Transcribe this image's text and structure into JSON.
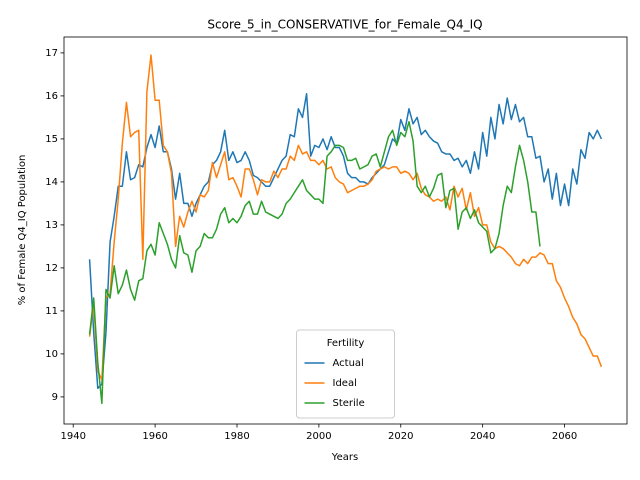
{
  "chart_data": {
    "type": "line",
    "title": "Score_5_in_CONSERVATIVE_for_Female_Q4_IQ",
    "xlabel": "Years",
    "ylabel": "% of Female Q4_IQ Population",
    "legend_title": "Fertility",
    "legend": "lower center",
    "grid": false,
    "xlim": [
      1937.75,
      2075.25
    ],
    "ylim": [
      8.37,
      17.37
    ],
    "xticks": [
      1940,
      1960,
      1980,
      2000,
      2020,
      2040,
      2060
    ],
    "yticks": [
      9,
      10,
      11,
      12,
      13,
      14,
      15,
      16,
      17
    ],
    "x": [
      1944,
      1945,
      1946,
      1947,
      1948,
      1949,
      1950,
      1951,
      1952,
      1953,
      1954,
      1955,
      1956,
      1957,
      1958,
      1959,
      1960,
      1961,
      1962,
      1963,
      1964,
      1965,
      1966,
      1967,
      1968,
      1969,
      1970,
      1971,
      1972,
      1973,
      1974,
      1975,
      1976,
      1977,
      1978,
      1979,
      1980,
      1981,
      1982,
      1983,
      1984,
      1985,
      1986,
      1987,
      1988,
      1989,
      1990,
      1991,
      1992,
      1993,
      1994,
      1995,
      1996,
      1997,
      1998,
      1999,
      2000,
      2001,
      2002,
      2003,
      2004,
      2005,
      2006,
      2007,
      2008,
      2009,
      2010,
      2011,
      2012,
      2013,
      2014,
      2015,
      2016,
      2017,
      2018,
      2019,
      2020,
      2021,
      2022,
      2023,
      2024,
      2025,
      2026,
      2027,
      2028,
      2029,
      2030,
      2031,
      2032,
      2033,
      2034,
      2035,
      2036,
      2037,
      2038,
      2039,
      2040,
      2041,
      2042,
      2043,
      2044,
      2045,
      2046,
      2047,
      2048,
      2049,
      2050,
      2051,
      2052,
      2053,
      2054,
      2055,
      2056,
      2057,
      2058,
      2059,
      2060,
      2061,
      2062,
      2063,
      2064,
      2065,
      2066,
      2067,
      2068,
      2069
    ],
    "series": [
      {
        "name": "Actual",
        "color": "#1f77b4",
        "values": [
          12.2,
          10.5,
          9.2,
          9.3,
          10.5,
          12.6,
          13.2,
          13.9,
          13.9,
          14.7,
          14.05,
          14.1,
          14.4,
          14.35,
          14.8,
          15.1,
          14.8,
          15.3,
          14.7,
          14.7,
          14.3,
          13.6,
          14.2,
          13.5,
          13.5,
          13.2,
          13.5,
          13.7,
          13.9,
          14.0,
          14.4,
          14.5,
          14.7,
          15.2,
          14.5,
          14.7,
          14.45,
          14.5,
          14.7,
          14.5,
          14.15,
          14.1,
          14.0,
          13.9,
          13.9,
          14.1,
          14.3,
          14.5,
          14.6,
          15.1,
          15.05,
          15.7,
          15.5,
          16.05,
          14.6,
          14.85,
          14.8,
          15.0,
          14.75,
          15.05,
          14.8,
          14.8,
          14.6,
          14.2,
          14.1,
          14.1,
          14.0,
          14.0,
          13.95,
          14.1,
          14.2,
          14.3,
          14.4,
          14.7,
          15.0,
          14.9,
          15.45,
          15.2,
          15.7,
          15.35,
          15.5,
          15.1,
          15.2,
          15.05,
          14.95,
          14.9,
          14.7,
          14.65,
          14.65,
          14.5,
          14.55,
          14.35,
          14.5,
          14.2,
          14.7,
          14.3,
          15.15,
          14.6,
          15.5,
          15.0,
          15.8,
          15.35,
          15.95,
          15.45,
          15.8,
          15.4,
          15.5,
          15.05,
          15.05,
          14.55,
          14.6,
          14.0,
          14.3,
          13.6,
          14.2,
          13.45,
          13.95,
          13.45,
          14.3,
          13.95,
          14.75,
          14.55,
          15.15,
          15.0,
          15.2,
          15.0
        ]
      },
      {
        "name": "Ideal",
        "color": "#ff7f0e",
        "values": [
          10.4,
          11.2,
          9.6,
          9.4,
          11.3,
          11.4,
          12.6,
          13.6,
          14.9,
          15.85,
          15.05,
          15.15,
          15.2,
          12.2,
          16.1,
          16.95,
          15.9,
          15.9,
          14.85,
          14.7,
          14.2,
          12.5,
          13.2,
          12.95,
          13.3,
          13.55,
          13.3,
          13.7,
          13.65,
          13.8,
          14.45,
          14.1,
          14.4,
          14.7,
          14.05,
          14.1,
          13.9,
          13.65,
          14.3,
          14.3,
          14.05,
          13.7,
          14.05,
          14.0,
          14.0,
          14.25,
          14.1,
          14.3,
          14.3,
          14.6,
          14.5,
          14.85,
          14.65,
          14.7,
          14.5,
          14.5,
          14.4,
          14.5,
          14.3,
          14.35,
          14.1,
          14.0,
          13.95,
          13.75,
          13.8,
          13.85,
          13.9,
          13.9,
          13.95,
          14.05,
          14.25,
          14.3,
          14.35,
          14.3,
          14.35,
          14.35,
          14.2,
          14.25,
          14.2,
          14.05,
          14.2,
          13.85,
          13.7,
          13.65,
          13.55,
          13.6,
          13.55,
          13.65,
          13.35,
          13.9,
          13.65,
          13.85,
          13.35,
          13.75,
          13.2,
          13.4,
          13.0,
          13.0,
          12.6,
          12.45,
          12.5,
          12.45,
          12.35,
          12.25,
          12.1,
          12.05,
          12.2,
          12.1,
          12.25,
          12.25,
          12.35,
          12.3,
          12.1,
          12.1,
          11.7,
          11.55,
          11.3,
          11.1,
          10.85,
          10.7,
          10.45,
          10.35,
          10.15,
          9.95,
          9.95,
          9.7
        ]
      },
      {
        "name": "Sterile",
        "color": "#2ca02c",
        "values": [
          10.45,
          11.3,
          9.8,
          8.85,
          11.5,
          11.3,
          12.05,
          11.4,
          11.6,
          11.95,
          11.5,
          11.25,
          11.7,
          11.75,
          12.4,
          12.55,
          12.3,
          13.05,
          12.8,
          12.55,
          12.2,
          12.0,
          12.75,
          12.35,
          12.3,
          11.9,
          12.4,
          12.5,
          12.8,
          12.7,
          12.7,
          12.9,
          13.25,
          13.4,
          13.05,
          13.15,
          13.05,
          13.2,
          13.45,
          13.55,
          13.25,
          13.25,
          13.55,
          13.3,
          13.25,
          13.2,
          13.15,
          13.25,
          13.5,
          13.6,
          13.75,
          13.9,
          14.05,
          13.8,
          13.7,
          13.6,
          13.6,
          13.5,
          14.6,
          14.7,
          14.85,
          14.85,
          14.8,
          14.5,
          14.5,
          14.55,
          14.3,
          14.35,
          14.4,
          14.6,
          14.65,
          14.35,
          14.7,
          15.05,
          15.2,
          14.85,
          15.15,
          15.05,
          15.4,
          14.95,
          13.9,
          13.75,
          13.9,
          13.65,
          13.85,
          14.15,
          14.2,
          13.4,
          13.8,
          13.85,
          12.9,
          13.3,
          13.4,
          13.15,
          13.35,
          13.05,
          12.95,
          12.85,
          12.35,
          12.45,
          12.8,
          13.45,
          13.9,
          13.75,
          14.35,
          14.85,
          14.5,
          14.0,
          13.3,
          13.3,
          12.5,
          null,
          null,
          null,
          null,
          null,
          null,
          null,
          null,
          null,
          null,
          null,
          null,
          null,
          null,
          null
        ]
      }
    ]
  }
}
